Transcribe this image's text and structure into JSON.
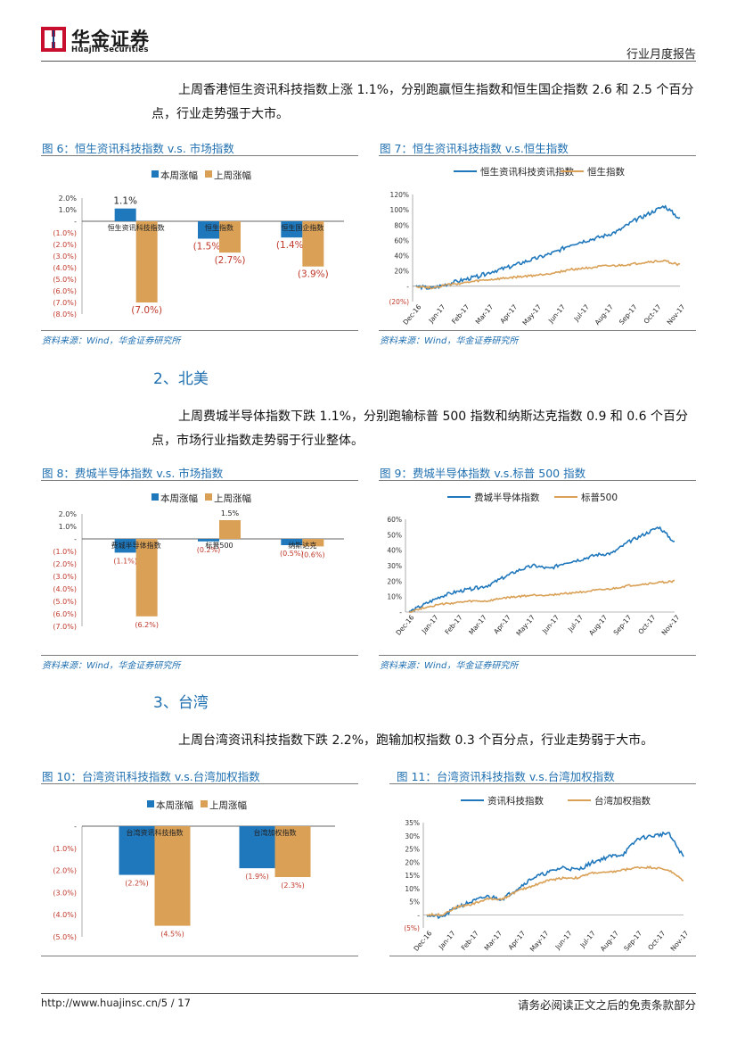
{
  "header": {
    "logo_cn": "华金证券",
    "logo_en": "Huajin Securities",
    "report_type": "行业月度报告"
  },
  "colors": {
    "blue": "#1f77bc",
    "orange": "#d9a056",
    "title_blue": "#1f6fb0",
    "neg_red": "#c0392b"
  },
  "paragraphs": {
    "p1": "上周香港恒生资讯科技指数上涨 1.1%，分别跑赢恒生指数和恒生国企指数 2.6 和 2.5 个百分点，行业走势强于大市。",
    "p2": "上周费城半导体指数下跌 1.1%，分别跑输标普 500 指数和纳斯达克指数 0.9 和 0.6 个百分点，市场行业指数走势弱于行业整体。",
    "p3": "上周台湾资讯科技指数下跌 2.2%，跑输加权指数 0.3 个百分点，行业走势弱于大市。"
  },
  "sections": {
    "s2": "2、北美",
    "s3": "3、台湾"
  },
  "figures": {
    "f6": {
      "title": "图 6：恒生资讯科技指数 v.s. 市场指数",
      "source": "资料来源：Wind，华金证券研究所"
    },
    "f7": {
      "title": "图 7：恒生资讯科技指数 v.s.恒生指数",
      "source": "资料来源：Wind，华金证券研究所"
    },
    "f8": {
      "title": "图 8：费城半导体指数  v.s. 市场指数",
      "source": "资料来源：Wind，华金证券研究所"
    },
    "f9": {
      "title": "图 9：费城半导体指数 v.s.标普 500 指数",
      "source": "资料来源：Wind，华金证券研究所"
    },
    "f10": {
      "title": "图 10：台湾资讯科技指数 v.s.台湾加权指数"
    },
    "f11": {
      "title": "图 11：台湾资讯科技指数 v.s.台湾加权指数"
    }
  },
  "footer": {
    "left": "http://www.huajinsc.cn/5 / 17",
    "right": "请务必阅读正文之后的免责条款部分"
  },
  "chart_data": [
    {
      "id": "f6",
      "type": "bar",
      "categories": [
        "恒生资讯科技指数",
        "恒生指数",
        "恒生国企指数"
      ],
      "series": [
        {
          "name": "本周涨幅",
          "values": [
            1.1,
            -1.5,
            -1.4
          ],
          "labels": [
            "1.1%",
            "(1.5%)",
            "(1.4%)"
          ]
        },
        {
          "name": "上周涨幅",
          "values": [
            -7.0,
            -2.7,
            -3.9
          ],
          "labels": [
            "(7.0%)",
            "(2.7%)",
            "(3.9%)"
          ]
        }
      ],
      "yticks": [
        "2.0%",
        "1.0%",
        "-",
        "(1.0%)",
        "(2.0%)",
        "(3.0%)",
        "(4.0%)",
        "(5.0%)",
        "(6.0%)",
        "(7.0%)",
        "(8.0%)"
      ],
      "ylim": [
        -8,
        2
      ]
    },
    {
      "id": "f7",
      "type": "line",
      "legend": [
        "恒生资讯科技资讯指数",
        "恒生指数"
      ],
      "xticks": [
        "Dec-16",
        "Jan-17",
        "Feb-17",
        "Mar-17",
        "Apr-17",
        "May-17",
        "Jun-17",
        "Jul-17",
        "Aug-17",
        "Sep-17",
        "Oct-17",
        "Nov-17"
      ],
      "yticks": [
        "120%",
        "100%",
        "80%",
        "60%",
        "40%",
        "20%",
        "-",
        "(20%)"
      ],
      "ylim": [
        -20,
        120
      ],
      "series": [
        {
          "name": "恒生资讯科技资讯指数",
          "values": [
            0,
            -3,
            3,
            8,
            13,
            20,
            25,
            32,
            38,
            45,
            55,
            60,
            65,
            72,
            85,
            95,
            105,
            88
          ]
        },
        {
          "name": "恒生指数",
          "values": [
            0,
            -2,
            2,
            4,
            7,
            9,
            11,
            13,
            15,
            18,
            22,
            24,
            26,
            27,
            29,
            32,
            33,
            28
          ]
        }
      ]
    },
    {
      "id": "f8",
      "type": "bar",
      "categories": [
        "费城半导体指数",
        "标普500",
        "纳斯达克"
      ],
      "series": [
        {
          "name": "本周涨幅",
          "values": [
            -1.1,
            -0.2,
            -0.5
          ],
          "labels": [
            "(1.1%)",
            "(0.2%)",
            "(0.5%)"
          ]
        },
        {
          "name": "上周涨幅",
          "values": [
            -6.2,
            1.5,
            -0.6
          ],
          "labels": [
            "(6.2%)",
            "1.5%",
            "(0.6%)"
          ]
        }
      ],
      "yticks": [
        "2.0%",
        "1.0%",
        "-",
        "(1.0%)",
        "(2.0%)",
        "(3.0%)",
        "(4.0%)",
        "(5.0%)",
        "(6.0%)",
        "(7.0%)"
      ],
      "ylim": [
        -7,
        2
      ]
    },
    {
      "id": "f9",
      "type": "line",
      "legend": [
        "费城半导体指数",
        "标普500"
      ],
      "xticks": [
        "Dec-16",
        "Jan-17",
        "Feb-17",
        "Mar-17",
        "Apr-17",
        "May-17",
        "Jun-17",
        "Jul-17",
        "Aug-17",
        "Sep-17",
        "Oct-17",
        "Nov-17"
      ],
      "yticks": [
        "60%",
        "50%",
        "40%",
        "30%",
        "20%",
        "10%",
        "-"
      ],
      "ylim": [
        0,
        60
      ],
      "series": [
        {
          "name": "费城半导体指数",
          "values": [
            0,
            5,
            10,
            13,
            15,
            17,
            22,
            27,
            30,
            28,
            32,
            34,
            37,
            38,
            45,
            50,
            55,
            45
          ]
        },
        {
          "name": "标普500",
          "values": [
            0,
            3,
            5,
            6,
            7,
            7,
            9,
            10,
            11,
            11,
            12,
            13,
            14,
            15,
            17,
            18,
            19,
            20
          ]
        }
      ]
    },
    {
      "id": "f10",
      "type": "bar",
      "categories": [
        "台湾资讯科技指数",
        "台湾加权指数"
      ],
      "series": [
        {
          "name": "本周涨幅",
          "values": [
            -2.2,
            -1.9
          ],
          "labels": [
            "(2.2%)",
            "(1.9%)"
          ]
        },
        {
          "name": "上周涨幅",
          "values": [
            -4.5,
            -2.3
          ],
          "labels": [
            "(4.5%)",
            "(2.3%)"
          ]
        }
      ],
      "yticks": [
        "-",
        "(1.0%)",
        "(2.0%)",
        "(3.0%)",
        "(4.0%)",
        "(5.0%)"
      ],
      "ylim": [
        -5,
        0
      ]
    },
    {
      "id": "f11",
      "type": "line",
      "legend": [
        "资讯科技指数",
        "台湾加权指数"
      ],
      "xticks": [
        "Dec-16",
        "Jan-17",
        "Feb-17",
        "Mar-17",
        "Apr-17",
        "May-17",
        "Jun-17",
        "Jul-17",
        "Aug-17",
        "Sep-17",
        "Oct-17",
        "Nov-17"
      ],
      "yticks": [
        "35%",
        "30%",
        "25%",
        "20%",
        "15%",
        "10%",
        "5%",
        "-",
        "(5%)"
      ],
      "ylim": [
        -5,
        35
      ],
      "series": [
        {
          "name": "资讯科技指数",
          "values": [
            0,
            -1,
            3,
            5,
            7,
            6,
            10,
            14,
            16,
            18,
            17,
            20,
            22,
            23,
            29,
            30,
            31,
            22
          ]
        },
        {
          "name": "台湾加权指数",
          "values": [
            0,
            0,
            3,
            4,
            6,
            6,
            9,
            11,
            13,
            14,
            14,
            16,
            16,
            17,
            18,
            18,
            17,
            13
          ]
        }
      ]
    }
  ]
}
